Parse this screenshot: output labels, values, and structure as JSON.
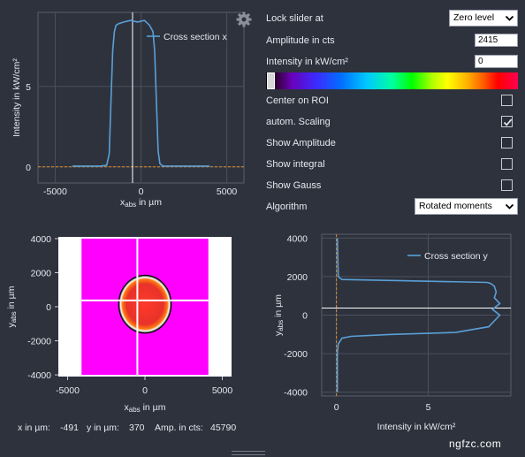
{
  "controls": {
    "lock_slider_label": "Lock slider at",
    "lock_slider_value": "Zero level",
    "amplitude_label": "Amplitude in cts",
    "amplitude_value": "2415",
    "intensity_label": "Intensity in kW/cm²",
    "intensity_value": "0",
    "center_on_roi_label": "Center on ROI",
    "center_on_roi_checked": false,
    "auto_scaling_label": "autom. Scaling",
    "auto_scaling_checked": true,
    "show_amplitude_label": "Show Amplitude",
    "show_amplitude_checked": false,
    "show_integral_label": "Show integral",
    "show_integral_checked": false,
    "show_gauss_label": "Show Gauss",
    "show_gauss_checked": false,
    "algorithm_label": "Algorithm",
    "algorithm_value": "Rotated moments"
  },
  "readout": {
    "x_label": "x in µm:",
    "x_value": "-491",
    "y_label": "y in µm:",
    "y_value": "370",
    "amp_label": "Amp. in cts:",
    "amp_value": "45790"
  },
  "watermark": "ngfzc.com",
  "icons": {
    "settings": "gear-icon",
    "dropdown": "chevron-down-icon",
    "checkmark": "checkmark-icon"
  },
  "colors": {
    "background": "#2e323d",
    "plot_background": "#ffffff",
    "profile_line": "#5aa0d8",
    "zero_line": "#e08a2a",
    "beam_fill": "#ff00ff",
    "beam_core": "#e8322a"
  },
  "chart_data": [
    {
      "type": "line",
      "name": "cross-section-x",
      "xlabel": "xabs in µm",
      "xlabel_main": "x",
      "xlabel_sub": "abs",
      "xlabel_rest": " in µm",
      "ylabel": "Intensity in kW/cm²",
      "xlim": [
        -6000,
        6000
      ],
      "ylim": [
        -1,
        9.6
      ],
      "xticks": [
        -5000,
        0,
        5000
      ],
      "xtick_labels": [
        "-5000",
        "0",
        "5000"
      ],
      "yticks": [
        0,
        5
      ],
      "ytick_labels": [
        "0",
        "5"
      ],
      "grid": true,
      "legend_position": "top-right",
      "cursor_x": -491,
      "series": [
        {
          "name": "Cross section x",
          "x": [
            -4000,
            -2400,
            -2000,
            -1850,
            -1750,
            -1650,
            -1550,
            -1450,
            -1300,
            -1000,
            -600,
            -200,
            200,
            500,
            700,
            800,
            900,
            1000,
            1100,
            1300,
            4000
          ],
          "y": [
            0.05,
            0.05,
            0.1,
            0.8,
            4.0,
            7.2,
            8.4,
            8.8,
            8.9,
            9.0,
            9.1,
            9.0,
            9.1,
            8.8,
            8.4,
            7.2,
            4.0,
            1.0,
            0.2,
            0.05,
            0.05
          ]
        }
      ]
    },
    {
      "type": "heatmap",
      "name": "beam-image",
      "xlabel": "xabs in µm",
      "xlabel_main": "x",
      "xlabel_sub": "abs",
      "xlabel_rest": " in µm",
      "ylabel": "yabs in µm",
      "ylabel_main": "y",
      "ylabel_sub": "abs",
      "ylabel_rest": " in µm",
      "xlim": [
        -5600,
        5600
      ],
      "ylim": [
        -4100,
        4100
      ],
      "xticks": [
        -5000,
        0,
        5000
      ],
      "xtick_labels": [
        "-5000",
        "0",
        "5000"
      ],
      "yticks": [
        -4000,
        -2000,
        0,
        2000,
        4000
      ],
      "ytick_labels": [
        "-4000",
        "-2000",
        "0",
        "2000",
        "4000"
      ],
      "image_extent_x": [
        -4100,
        4100
      ],
      "image_extent_y": [
        -4000,
        4000
      ],
      "beam_center": [
        0,
        150
      ],
      "beam_radius": 1700,
      "cursor": [
        -491,
        370
      ]
    },
    {
      "type": "line",
      "name": "cross-section-y",
      "xlabel": "Intensity in kW/cm²",
      "ylabel": "yabs in µm",
      "ylabel_main": "y",
      "ylabel_sub": "abs",
      "ylabel_rest": " in µm",
      "xlim": [
        -0.8,
        9.5
      ],
      "ylim": [
        -4200,
        4200
      ],
      "xticks": [
        0,
        5
      ],
      "xtick_labels": [
        "0",
        "5"
      ],
      "yticks": [
        -4000,
        -2000,
        0,
        2000,
        4000
      ],
      "ytick_labels": [
        "-4000",
        "-2000",
        "0",
        "2000",
        "4000"
      ],
      "grid": true,
      "legend_position": "top-right",
      "cursor_y": 370,
      "series": [
        {
          "name": "Cross section y",
          "y": [
            4000,
            2000,
            1850,
            1800,
            1700,
            1650,
            1500,
            1200,
            900,
            600,
            300,
            0,
            -300,
            -600,
            -900,
            -1000,
            -1100,
            -1200,
            -1500,
            -2000,
            -4000
          ],
          "x": [
            0.05,
            0.1,
            0.3,
            3.0,
            8.2,
            8.4,
            8.6,
            8.7,
            8.6,
            8.9,
            8.5,
            8.9,
            8.6,
            8.3,
            6.5,
            3.0,
            0.8,
            0.3,
            0.1,
            0.05,
            0.05
          ]
        }
      ]
    }
  ]
}
